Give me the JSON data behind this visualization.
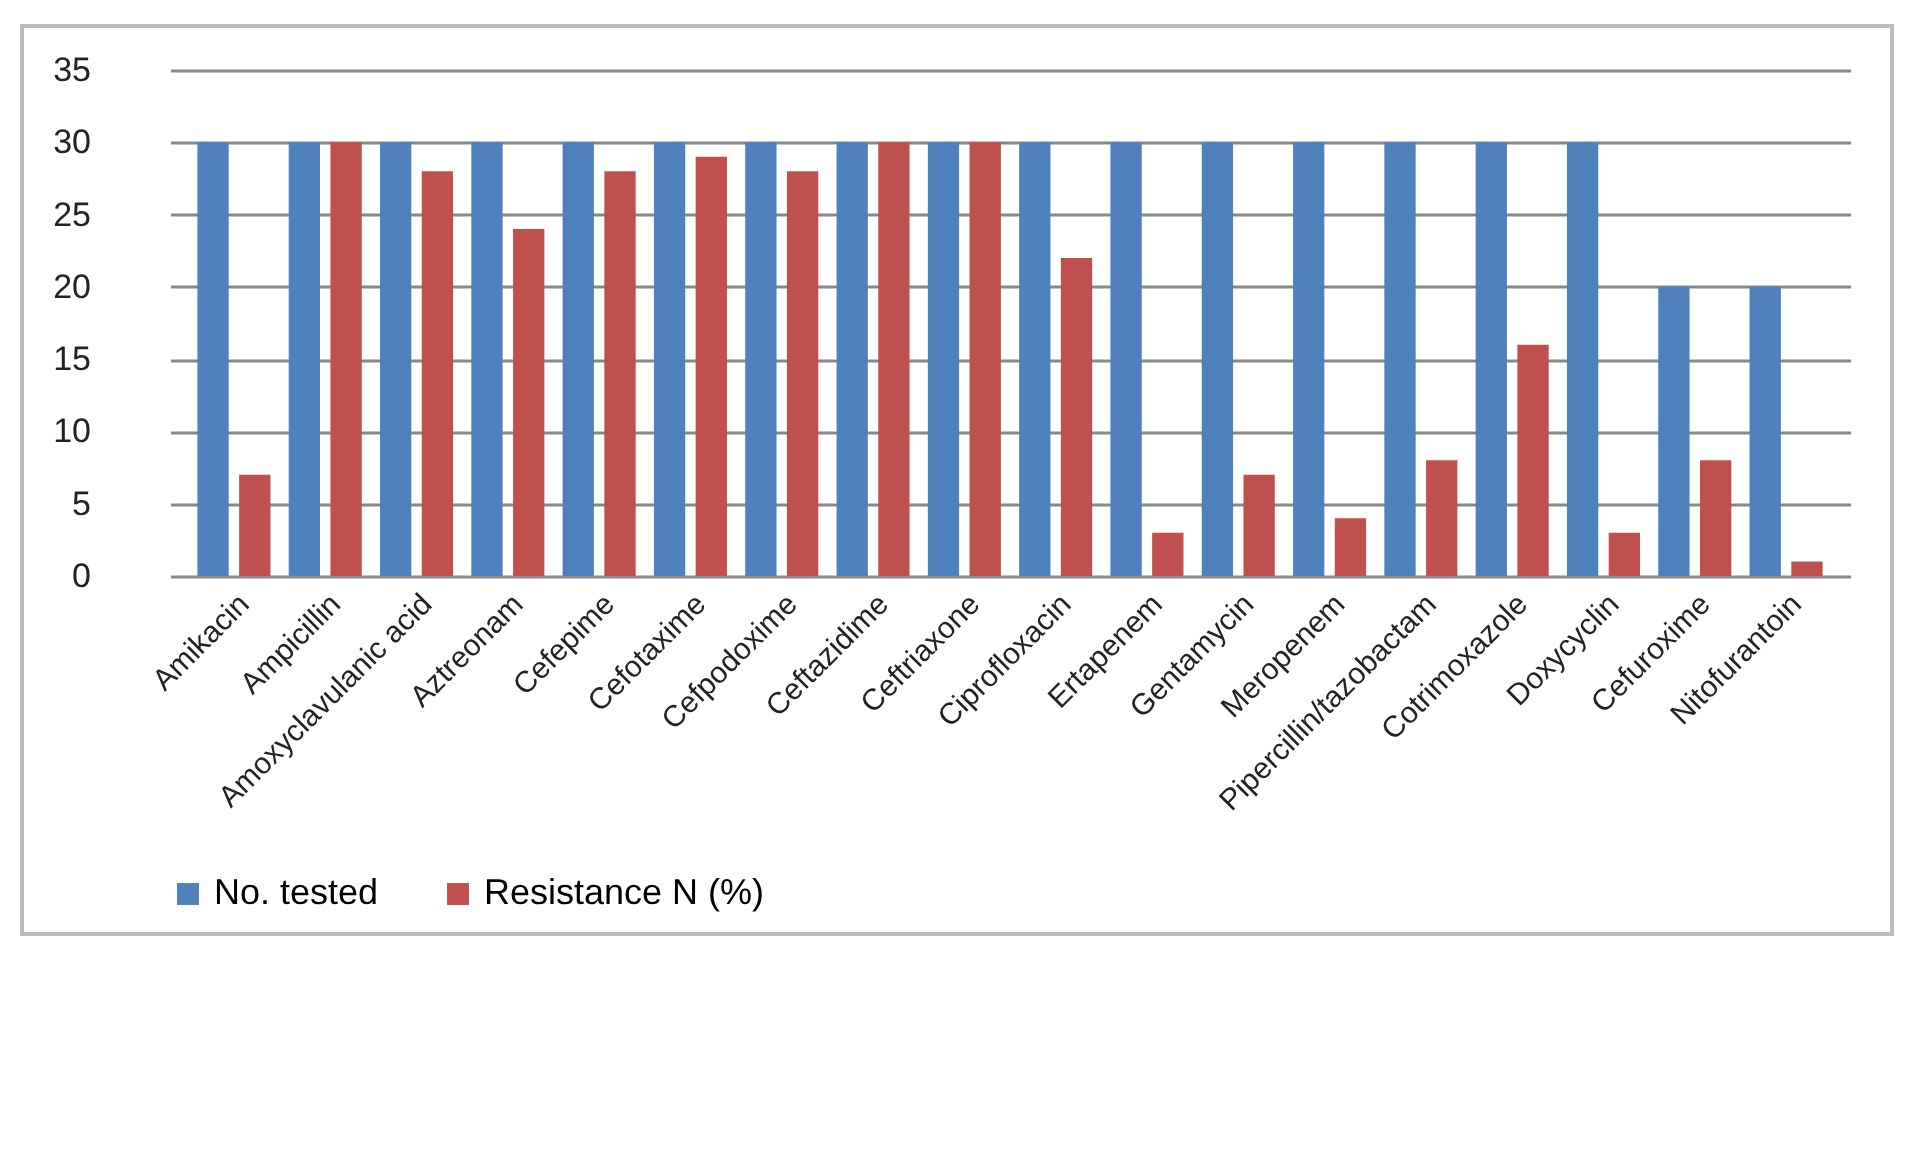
{
  "chart_data": {
    "type": "bar",
    "categories": [
      "Amikacin",
      "Ampicillin",
      "Amoxyclavulanic acid",
      "Aztreonam",
      "Cefepime",
      "Cefotaxime",
      "Cefpodoxime",
      "Ceftazidime",
      "Ceftriaxone",
      "Ciprofloxacin",
      "Ertapenem",
      "Gentamycin",
      "Meropenem",
      "Pipercillin/tazobactam",
      "Cotrimoxazole",
      "Doxycyclin",
      "Cefuroxime",
      "Nitofurantoin"
    ],
    "series": [
      {
        "name": "No. tested",
        "color": "#4f81bd",
        "values": [
          30,
          30,
          30,
          30,
          30,
          30,
          30,
          30,
          30,
          30,
          30,
          30,
          30,
          30,
          30,
          30,
          20,
          20
        ]
      },
      {
        "name": "Resistance N (%)",
        "color": "#c0504d",
        "values": [
          7,
          30,
          28,
          24,
          28,
          29,
          28,
          30,
          30,
          22,
          3,
          7,
          4,
          8,
          16,
          3,
          8,
          1
        ]
      }
    ],
    "ylim": [
      0,
      35
    ],
    "yticks": [
      0,
      5,
      10,
      15,
      20,
      25,
      30,
      35
    ],
    "grid": "y",
    "legend": "bottom"
  }
}
